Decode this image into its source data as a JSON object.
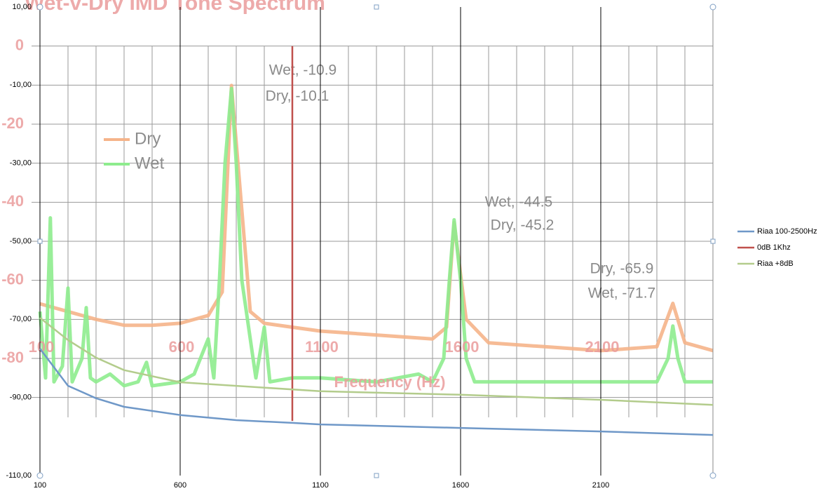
{
  "chart_data": [
    {
      "type": "line",
      "xlim": [
        100,
        2500
      ],
      "ylim": [
        -110,
        10
      ],
      "xticks": [
        100,
        600,
        1100,
        1600,
        2100
      ],
      "yticks": [
        {
          "value": 10,
          "label": "10,00"
        },
        {
          "value": -10,
          "label": "-10,00"
        },
        {
          "value": -30,
          "label": "-30,00"
        },
        {
          "value": -50,
          "label": "-50,00"
        },
        {
          "value": -70,
          "label": "-70,00"
        },
        {
          "value": -90,
          "label": "-90,00"
        },
        {
          "value": -110,
          "label": "-110,00"
        }
      ],
      "legend": "right",
      "series": [
        {
          "name": "Riaa 100-2500Hz",
          "color": "#6f98c8",
          "x": [
            100,
            200,
            300,
            400,
            600,
            800,
            1000,
            1100,
            1600,
            2100,
            2500
          ],
          "values": [
            -77.5,
            -87,
            -90.2,
            -92.4,
            -94.5,
            -95.8,
            -96.5,
            -96.9,
            -97.8,
            -98.7,
            -99.6
          ]
        },
        {
          "name": "0dB 1Khz",
          "color": "#c0504d",
          "x": [
            1000,
            1000
          ],
          "values": [
            0,
            -96
          ]
        },
        {
          "name": "Riaa +8dB",
          "color": "#b3cc8c",
          "x": [
            100,
            200,
            300,
            400,
            600,
            1100,
            1600,
            2100,
            2500
          ],
          "values": [
            -69.6,
            -75.3,
            -79.8,
            -83,
            -86.1,
            -88.4,
            -89.3,
            -90.6,
            -91.9
          ]
        }
      ]
    },
    {
      "type": "line",
      "title": "Wet-v-Dry IMD Tone Spectrum",
      "x_label": "Frequency (Hz)",
      "xlim": [
        100,
        2500
      ],
      "ylim": [
        -110,
        10
      ],
      "xticks": [
        100,
        600,
        1100,
        1600,
        2100
      ],
      "yticks": [
        0,
        -20,
        -40,
        -60,
        -80
      ],
      "xminorticks": [
        100,
        200,
        300,
        400,
        500,
        600,
        700,
        800,
        900,
        1000,
        1100,
        1200,
        1300,
        1400,
        1500,
        1600,
        1700,
        1800,
        1900,
        2000,
        2100,
        2200,
        2300,
        2400,
        2500
      ],
      "yminorticks": [
        0,
        -10,
        -20,
        -30,
        -40,
        -50,
        -60,
        -70,
        -80,
        -90
      ],
      "legend": "upper left",
      "series": [
        {
          "name": "Dry",
          "color": "#f5b48a",
          "x": [
            100,
            200,
            300,
            400,
            500,
            600,
            700,
            750,
            783,
            850,
            900,
            1000,
            1100,
            1300,
            1500,
            1550,
            1577,
            1620,
            1700,
            1900,
            2100,
            2300,
            2357,
            2400,
            2500
          ],
          "values": [
            -66,
            -68,
            -70,
            -71.5,
            -71.5,
            -71,
            -69,
            -63,
            -10.1,
            -68,
            -71,
            -72,
            -73,
            -74,
            -75,
            -72,
            -45.2,
            -70,
            -76,
            -77,
            -78,
            -77,
            -65.9,
            -76,
            -78
          ]
        },
        {
          "name": "Wet",
          "color": "#8eec8e",
          "x": [
            100,
            120,
            137,
            150,
            180,
            200,
            215,
            250,
            265,
            280,
            300,
            350,
            400,
            450,
            480,
            500,
            600,
            650,
            700,
            720,
            740,
            760,
            783,
            800,
            820,
            850,
            870,
            900,
            920,
            1000,
            1100,
            1300,
            1450,
            1500,
            1540,
            1560,
            1577,
            1600,
            1620,
            1650,
            2000,
            2300,
            2340,
            2357,
            2375,
            2400,
            2500
          ],
          "values": [
            -68,
            -85,
            -44,
            -86,
            -82,
            -62,
            -86,
            -80,
            -67,
            -85,
            -86,
            -84,
            -87,
            -86,
            -81,
            -87,
            -86,
            -84,
            -75,
            -85,
            -60,
            -30,
            -10.9,
            -30,
            -60,
            -75,
            -85,
            -72,
            -86,
            -85,
            -85,
            -86,
            -84,
            -86,
            -80,
            -60,
            -44.5,
            -60,
            -80,
            -86,
            -86,
            -86,
            -80,
            -71.7,
            -80,
            -86,
            -86
          ]
        }
      ],
      "annotations": [
        "Wet, -10.9",
        "Dry, -10.1",
        "Wet, -44.5",
        "Dry, -45.2",
        "Dry, -65.9",
        "Wet, -71.7"
      ]
    }
  ]
}
